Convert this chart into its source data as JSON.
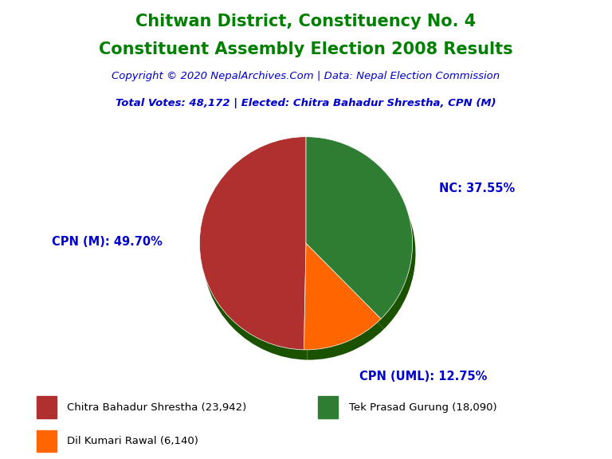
{
  "title_line1": "Chitwan District, Constituency No. 4",
  "title_line2": "Constituent Assembly Election 2008 Results",
  "title_color": "#008000",
  "copyright_text": "Copyright © 2020 NepalArchives.Com | Data: Nepal Election Commission",
  "subtitle_text": "Total Votes: 48,172 | Elected: Chitra Bahadur Shrestha, CPN (M)",
  "subtitle_color": "#0000CD",
  "slices": [
    {
      "label": "CPN (M)",
      "value": 23942,
      "pct": 49.7,
      "color": "#B03030"
    },
    {
      "label": "CPN (UML)",
      "value": 6140,
      "pct": 12.75,
      "color": "#FF6600"
    },
    {
      "label": "NC",
      "value": 18090,
      "pct": 37.55,
      "color": "#2E7D32"
    }
  ],
  "legend_entries": [
    {
      "label": "Chitra Bahadur Shrestha (23,942)",
      "color": "#B03030"
    },
    {
      "label": "Tek Prasad Gurung (18,090)",
      "color": "#2E7D32"
    },
    {
      "label": "Dil Kumari Rawal (6,140)",
      "color": "#FF6600"
    }
  ],
  "label_color": "#0000CD",
  "background_color": "#FFFFFF",
  "shadow_color": "#1A5200",
  "startangle": 90
}
